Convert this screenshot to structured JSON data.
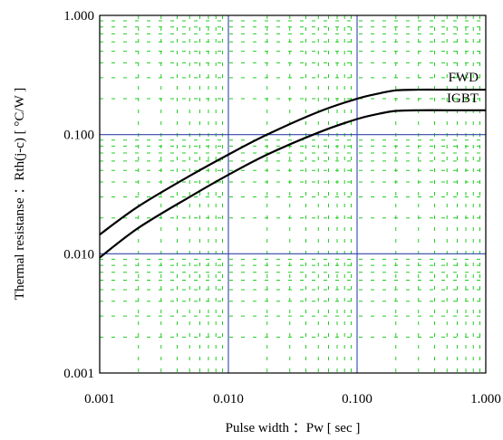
{
  "chart_data": {
    "type": "line",
    "title": "",
    "xlabel": "Pulse width ：Pw [ sec ]",
    "ylabel": "Thermal resistanse ：Rth(j-c) [ °C/W ]",
    "x_scale": "log",
    "y_scale": "log",
    "xlim": [
      0.001,
      1.0
    ],
    "ylim": [
      0.001,
      1.0
    ],
    "x_ticks": [
      0.001,
      0.01,
      0.1,
      1.0
    ],
    "x_tick_labels": [
      "0.001",
      "0.010",
      "0.100",
      "1.000"
    ],
    "y_ticks": [
      0.001,
      0.01,
      0.1,
      1.0
    ],
    "y_tick_labels": [
      "0.001",
      "0.010",
      "0.100",
      "1.000"
    ],
    "grid": true,
    "colors": {
      "major_grid": "#3344aa",
      "minor_grid": "#22cc22",
      "series": "#000000"
    },
    "series": [
      {
        "name": "FWD",
        "x": [
          0.001,
          0.002,
          0.005,
          0.01,
          0.02,
          0.05,
          0.1,
          0.15,
          0.2,
          0.3,
          0.5,
          1.0
        ],
        "y": [
          0.0145,
          0.025,
          0.045,
          0.068,
          0.1,
          0.155,
          0.2,
          0.222,
          0.235,
          0.238,
          0.238,
          0.238
        ]
      },
      {
        "name": "IGBT",
        "x": [
          0.001,
          0.002,
          0.005,
          0.01,
          0.02,
          0.05,
          0.1,
          0.15,
          0.2,
          0.3,
          0.5,
          1.0
        ],
        "y": [
          0.0093,
          0.0165,
          0.03,
          0.046,
          0.068,
          0.104,
          0.135,
          0.15,
          0.158,
          0.16,
          0.16,
          0.16
        ]
      }
    ]
  }
}
